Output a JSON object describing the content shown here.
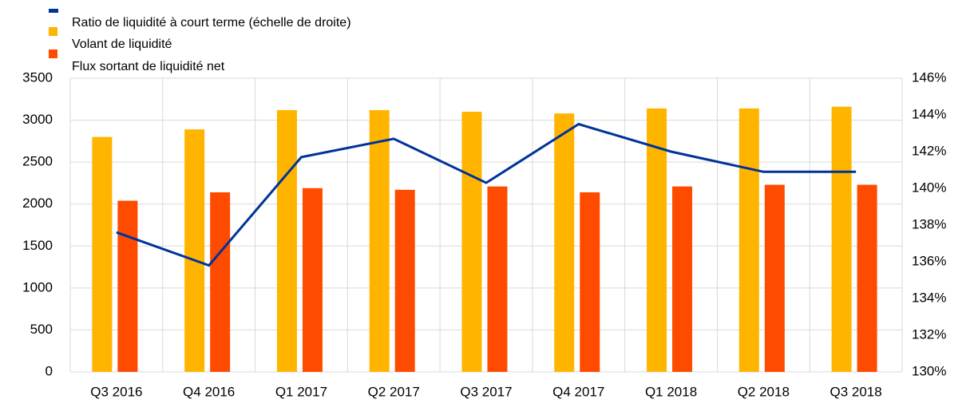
{
  "chart_data": {
    "type": "bar",
    "categories": [
      "Q3 2016",
      "Q4 2016",
      "Q1 2017",
      "Q2 2017",
      "Q3 2017",
      "Q4 2017",
      "Q1 2018",
      "Q2 2018",
      "Q3 2018"
    ],
    "series": [
      {
        "name": "Ratio de liquidité à court terme (échelle de droite)",
        "color": "#003299",
        "type": "line",
        "axis": "y2",
        "values": [
          137.6,
          135.8,
          141.7,
          142.7,
          140.3,
          143.5,
          142.0,
          140.9,
          140.9
        ]
      },
      {
        "name": "Volant de liquidité",
        "color": "#ffb400",
        "type": "bar",
        "values": [
          2800,
          2890,
          3120,
          3120,
          3100,
          3080,
          3140,
          3140,
          3160
        ]
      },
      {
        "name": "Flux sortant de liquidité net",
        "color": "#ff4b00",
        "type": "bar",
        "values": [
          2040,
          2140,
          2190,
          2170,
          2210,
          2140,
          2210,
          2230,
          2230
        ]
      }
    ],
    "ylim": [
      0,
      3500
    ],
    "yticks": [
      0,
      500,
      1000,
      1500,
      2000,
      2500,
      3000,
      3500
    ],
    "y2lim": [
      130,
      146
    ],
    "y2ticks": [
      {
        "value": 130,
        "label": "130%"
      },
      {
        "value": 132,
        "label": "132%"
      },
      {
        "value": 134,
        "label": "134%"
      },
      {
        "value": 136,
        "label": "136%"
      },
      {
        "value": 138,
        "label": "138%"
      },
      {
        "value": 140,
        "label": "140%"
      },
      {
        "value": 142,
        "label": "142%"
      },
      {
        "value": 144,
        "label": "144%"
      },
      {
        "value": 146,
        "label": "146%"
      }
    ],
    "grid": true,
    "legend": "top-left"
  }
}
